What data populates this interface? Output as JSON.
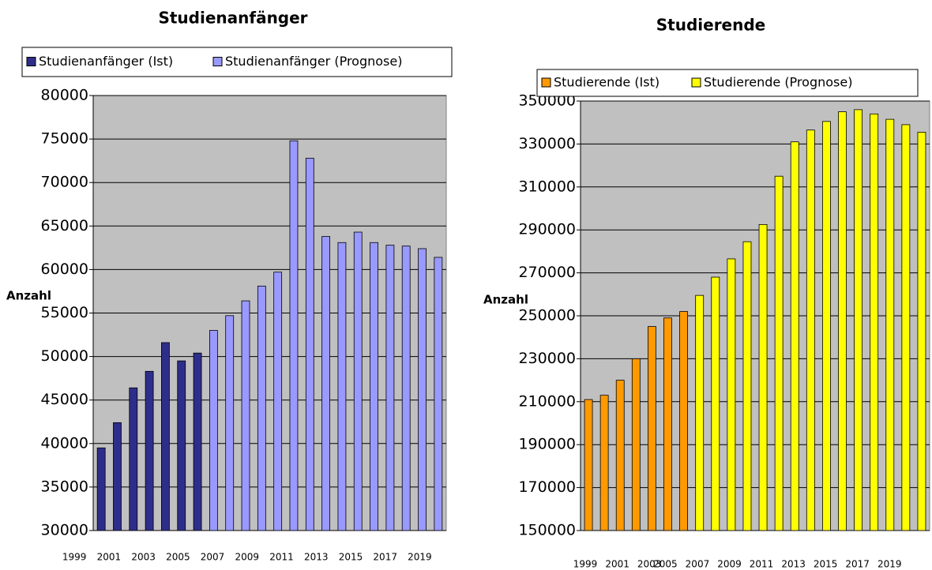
{
  "chart_data": [
    {
      "type": "bar",
      "title": "Studienanfänger",
      "y_label": "Anzahl",
      "categories": [
        "1999",
        null,
        "2001",
        null,
        "2003",
        null,
        "2005",
        null,
        "2007",
        null,
        "2009",
        null,
        "2011",
        null,
        "2013",
        null,
        "2015",
        null,
        "2017",
        null,
        "2019",
        null
      ],
      "series": [
        {
          "name": "Studienanfänger (Ist)",
          "color": "#2e2e8a",
          "values": [
            39500,
            42400,
            46400,
            48300,
            51600,
            49500,
            50400,
            null,
            null,
            null,
            null,
            null,
            null,
            null,
            null,
            null,
            null,
            null,
            null,
            null,
            null,
            null
          ]
        },
        {
          "name": "Studienanfänger (Prognose)",
          "color": "#9999ff",
          "values": [
            null,
            null,
            null,
            null,
            null,
            null,
            null,
            53000,
            54700,
            56400,
            58100,
            59700,
            74800,
            72800,
            63800,
            63100,
            64300,
            63100,
            62800,
            62700,
            62400,
            61400
          ]
        }
      ],
      "ylim": [
        30000,
        80000
      ],
      "yticks": [
        30000,
        35000,
        40000,
        45000,
        50000,
        55000,
        60000,
        65000,
        70000,
        75000,
        80000
      ],
      "grid": true
    },
    {
      "type": "bar",
      "title": "Studierende",
      "y_label": "Anzahl",
      "categories": [
        "1999",
        null,
        "2001",
        null,
        "2003",
        "2005",
        null,
        "2007",
        null,
        "2009",
        null,
        "2011",
        null,
        "2013",
        null,
        "2015",
        null,
        "2017",
        null,
        "2019",
        null,
        null
      ],
      "series": [
        {
          "name": "Studierende (Ist)",
          "color": "#ff9900",
          "values": [
            211000,
            213000,
            220000,
            230000,
            245000,
            249000,
            252000,
            null,
            null,
            null,
            null,
            null,
            null,
            null,
            null,
            null,
            null,
            null,
            null,
            null,
            null,
            null
          ]
        },
        {
          "name": "Studierende (Prognose)",
          "color": "#ffff00",
          "values": [
            null,
            null,
            null,
            null,
            null,
            null,
            null,
            259500,
            268000,
            276500,
            284500,
            292500,
            315000,
            331000,
            336500,
            340500,
            345000,
            346000,
            344000,
            341500,
            339000,
            335500
          ]
        }
      ],
      "ylim": [
        150000,
        350000
      ],
      "yticks": [
        150000,
        170000,
        190000,
        210000,
        230000,
        250000,
        270000,
        290000,
        310000,
        330000,
        350000
      ],
      "grid": true
    }
  ]
}
